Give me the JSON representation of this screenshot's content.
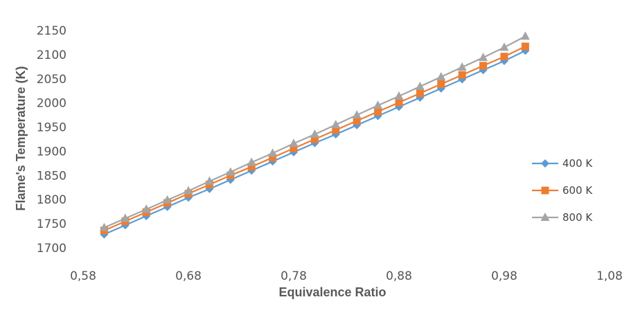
{
  "chart_data": {
    "type": "line",
    "xlabel": "Equivalence Ratio",
    "ylabel": "Flame's Temperature (K)",
    "xlim": [
      0.58,
      1.08
    ],
    "ylim": [
      1700,
      2150
    ],
    "x_ticks": [
      0.58,
      0.68,
      0.78,
      0.88,
      0.98,
      1.08
    ],
    "x_tick_labels": [
      "0,58",
      "0,68",
      "0,78",
      "0,88",
      "0,98",
      "1,08"
    ],
    "y_ticks": [
      1700,
      1750,
      1800,
      1850,
      1900,
      1950,
      2000,
      2050,
      2100,
      2150
    ],
    "y_tick_labels": [
      "1700",
      "1750",
      "1800",
      "1850",
      "1900",
      "1950",
      "2000",
      "2050",
      "2100",
      "2150"
    ],
    "grid": false,
    "legend_position": "right",
    "x": [
      0.6,
      0.62,
      0.64,
      0.66,
      0.68,
      0.7,
      0.72,
      0.74,
      0.76,
      0.78,
      0.8,
      0.82,
      0.84,
      0.86,
      0.88,
      0.9,
      0.92,
      0.94,
      0.96,
      0.98,
      1.0
    ],
    "series": [
      {
        "name": "400 K",
        "color": "#5b9bd5",
        "marker": "diamond",
        "values": [
          1728,
          1747,
          1766,
          1785,
          1804,
          1822,
          1841,
          1860,
          1879,
          1898,
          1917,
          1935,
          1954,
          1973,
          1992,
          2011,
          2030,
          2049,
          2068,
          2087,
          2108
        ]
      },
      {
        "name": "600 K",
        "color": "#ed7d31",
        "marker": "square",
        "values": [
          1736,
          1755,
          1774,
          1793,
          1812,
          1831,
          1850,
          1868,
          1887,
          1906,
          1925,
          1944,
          1963,
          1982,
          2001,
          2020,
          2039,
          2058,
          2077,
          2096,
          2117
        ]
      },
      {
        "name": "800 K",
        "color": "#a5a5a5",
        "marker": "triangle",
        "values": [
          1742,
          1761,
          1780,
          1799,
          1818,
          1838,
          1857,
          1877,
          1896,
          1916,
          1935,
          1955,
          1975,
          1995,
          2014,
          2034,
          2054,
          2074,
          2094,
          2115,
          2138
        ]
      }
    ]
  }
}
